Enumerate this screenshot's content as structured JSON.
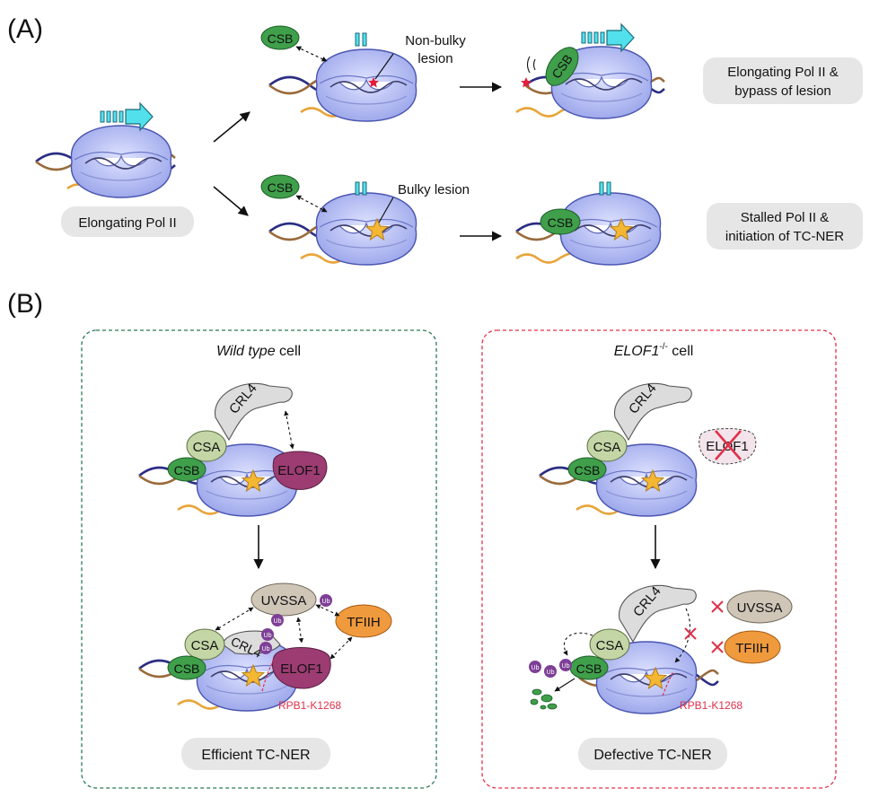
{
  "panel_a": {
    "label": "(A)",
    "start_caption": "Elongating Pol II",
    "non_bulky_label_line1": "Non-bulky",
    "non_bulky_label_line2": "lesion",
    "bulky_label": "Bulky lesion",
    "csb": "CSB",
    "outcome_top_line1": "Elongating Pol II &",
    "outcome_top_line2": "bypass of lesion",
    "outcome_bottom_line1": "Stalled Pol II &",
    "outcome_bottom_line2": "initiation of TC-NER"
  },
  "panel_b": {
    "label": "(B)",
    "wt": {
      "title_italic": "Wild type",
      "title_rest": " cell",
      "crl4": "CRL4",
      "csa": "CSA",
      "csb": "CSB",
      "elof1": "ELOF1",
      "uvssa": "UVSSA",
      "tfiih": "TFIIH",
      "ub": "Ub",
      "rpb1": "RPB1-K1268",
      "caption": "Efficient TC-NER"
    },
    "ko": {
      "title_italic": "ELOF1",
      "title_sup": "-/-",
      "title_rest": " cell",
      "crl4": "CRL4",
      "csa": "CSA",
      "csb": "CSB",
      "elof1": "ELOF1",
      "uvssa": "UVSSA",
      "tfiih": "TFIIH",
      "ub": "Ub",
      "rpb1": "RPB1-K1268",
      "caption": "Defective TC-NER"
    }
  },
  "colors": {
    "pol2": "#a9b3ee",
    "pol2_stroke": "#3d4aa8",
    "dna_a": "#2a2d82",
    "dna_b": "#9a6a3a",
    "rna": "#e8a53a",
    "csb": "#3f9f4a",
    "csa": "#c4d6a6",
    "crl4": "#dcdcdc",
    "elof1": "#9c3c72",
    "uvssa": "#cfc6b8",
    "tfiih": "#f09a3e",
    "ub": "#7e3f97",
    "lesion_star": "#f3b733",
    "non_bulky_star": "#e21d3a",
    "arrow_cyan": "#52e0ec",
    "wt_border": "#2a7a55",
    "ko_border": "#e0304a",
    "red_mark": "#e0304a",
    "caption_bg": "#e6e6e6"
  }
}
